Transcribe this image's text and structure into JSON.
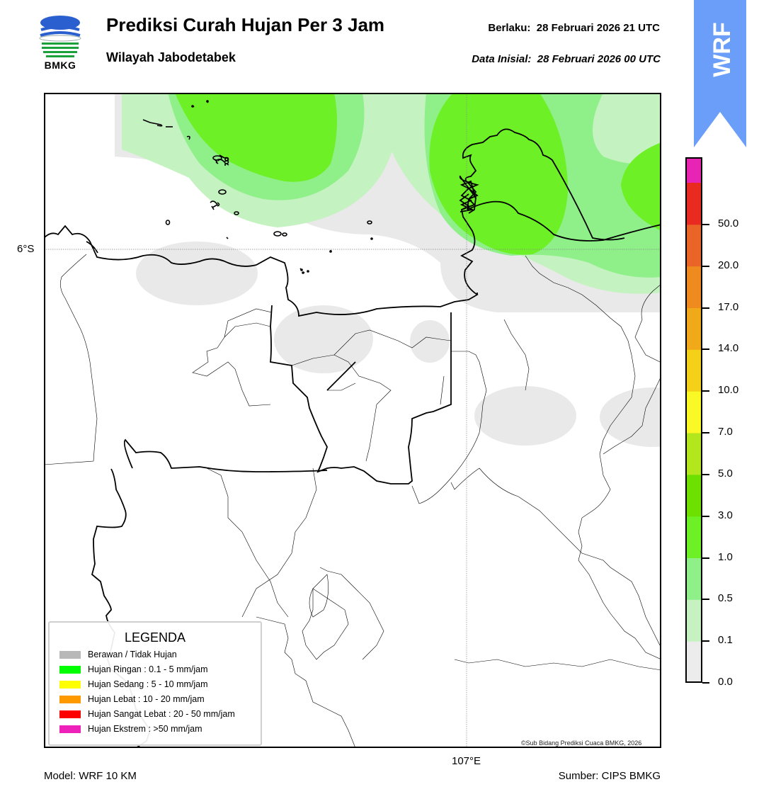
{
  "header": {
    "title": "Prediksi Curah Hujan Per 3 Jam",
    "subtitle": "Wilayah Jabodetabek",
    "valid_label": "Berlaku:",
    "valid_value": "28 Februari 2026 21 UTC",
    "init_label": "Data Inisial:",
    "init_value": "28 Februari 2026 00 UTC",
    "logo_text": "BMKG",
    "ribbon_text": "WRF"
  },
  "map": {
    "lat_label": "6°S",
    "lon_label": "107°E",
    "copyright": "©Sub Bidang Prediksi Cuaca BMKG, 2026"
  },
  "legend": {
    "title": "LEGENDA",
    "items": [
      {
        "label": "Berawan / Tidak Hujan",
        "color": "#b8b8b8"
      },
      {
        "label": "Hujan Ringan : 0.1 - 5 mm/jam",
        "color": "#00ff00"
      },
      {
        "label": "Hujan Sedang : 5 - 10 mm/jam",
        "color": "#ffff00"
      },
      {
        "label": "Hujan Lebat : 10 - 20 mm/jam",
        "color": "#ff9900"
      },
      {
        "label": "Hujan Sangat Lebat : 20 - 50 mm/jam",
        "color": "#ff0000"
      },
      {
        "label": "Hujan Ekstrem : >50 mm/jam",
        "color": "#ee22bb"
      }
    ]
  },
  "colorbar": {
    "ticks": [
      "0.0",
      "0.1",
      "0.5",
      "1.0",
      "3.0",
      "5.0",
      "7.0",
      "10.0",
      "14.0",
      "17.0",
      "20.0",
      "50.0"
    ],
    "colors": [
      "#ececec",
      "#c6f2c2",
      "#8ff08a",
      "#6df025",
      "#6ee000",
      "#b4e61e",
      "#faf825",
      "#f5d019",
      "#f0aa19",
      "#ee8a1e",
      "#ea6428",
      "#e82a20",
      "#e824b4"
    ]
  },
  "footer": {
    "model": "Model: WRF 10 KM",
    "source": "Sumber: CIPS BMKG"
  }
}
